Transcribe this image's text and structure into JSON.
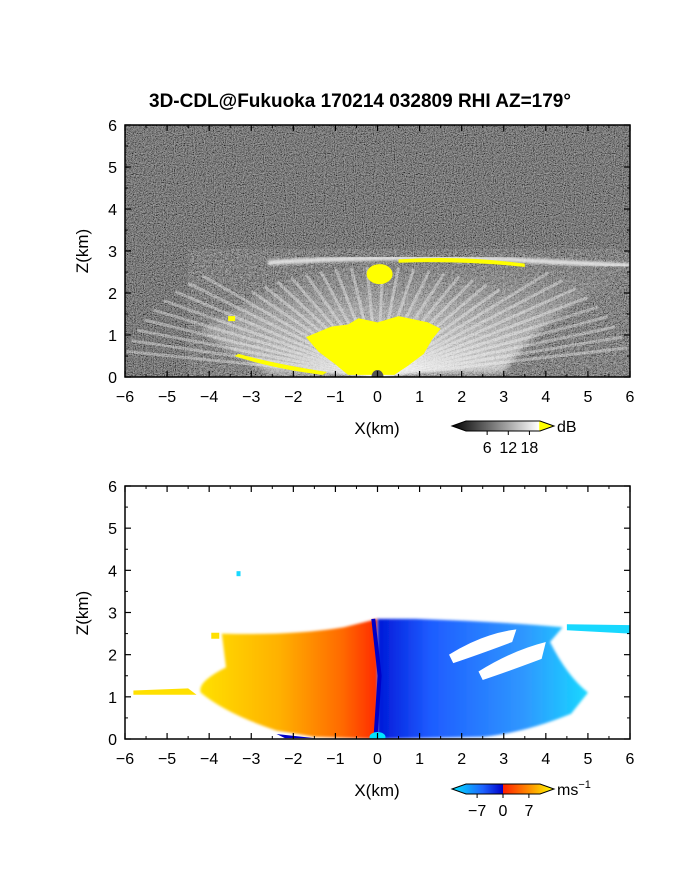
{
  "title": "3D-CDL@Fukuoka 170214 032809 RHI AZ=179°",
  "chart_data": [
    {
      "type": "heatmap",
      "panel": "top",
      "title": "3D-CDL@Fukuoka 170214 032809 RHI AZ=179°",
      "xlabel": "X(km)",
      "ylabel": "Z(km)",
      "xlim": [
        -6,
        6
      ],
      "ylim": [
        0,
        6
      ],
      "x_ticks": [
        -6,
        -5,
        -4,
        -3,
        -2,
        -1,
        0,
        1,
        2,
        3,
        4,
        5,
        6
      ],
      "y_ticks": [
        0,
        1,
        2,
        3,
        4,
        5,
        6
      ],
      "x_tick_labels": [
        "−6",
        "−5",
        "−4",
        "−3",
        "−2",
        "−1",
        "0",
        "1",
        "2",
        "3",
        "4",
        "5",
        "6"
      ],
      "y_tick_labels": [
        "0",
        "1",
        "2",
        "3",
        "4",
        "5",
        "6"
      ],
      "colorbar": {
        "unit": "dB",
        "ticks": [
          6,
          12,
          18
        ],
        "tick_labels": [
          "6",
          "12",
          "18"
        ],
        "colors": [
          "#000000",
          "#ffffff",
          "#ffff00"
        ]
      },
      "features": {
        "background": "noise",
        "echo_top_km": 2.8,
        "strong_echo_color": "#ffff00"
      }
    },
    {
      "type": "heatmap",
      "panel": "bottom",
      "xlabel": "X(km)",
      "ylabel": "Z(km)",
      "xlim": [
        -6,
        6
      ],
      "ylim": [
        0,
        6
      ],
      "x_ticks": [
        -6,
        -5,
        -4,
        -3,
        -2,
        -1,
        0,
        1,
        2,
        3,
        4,
        5,
        6
      ],
      "y_ticks": [
        0,
        1,
        2,
        3,
        4,
        5,
        6
      ],
      "x_tick_labels": [
        "−6",
        "−5",
        "−4",
        "−3",
        "−2",
        "−1",
        "0",
        "1",
        "2",
        "3",
        "4",
        "5",
        "6"
      ],
      "y_tick_labels": [
        "0",
        "1",
        "2",
        "3",
        "4",
        "5",
        "6"
      ],
      "colorbar": {
        "unit": "ms",
        "unit_exp": "−1",
        "ticks": [
          -7,
          0,
          7
        ],
        "tick_labels": [
          "−7",
          "0",
          "7"
        ],
        "colors": [
          "#00e5ff",
          "#1e64ff",
          "#0000c8",
          "#ff2000",
          "#ff8c00",
          "#ffff00"
        ]
      },
      "features": {
        "negative_side": "x > 0",
        "positive_side": "x < 0",
        "echo_top_km": 2.8
      }
    }
  ]
}
